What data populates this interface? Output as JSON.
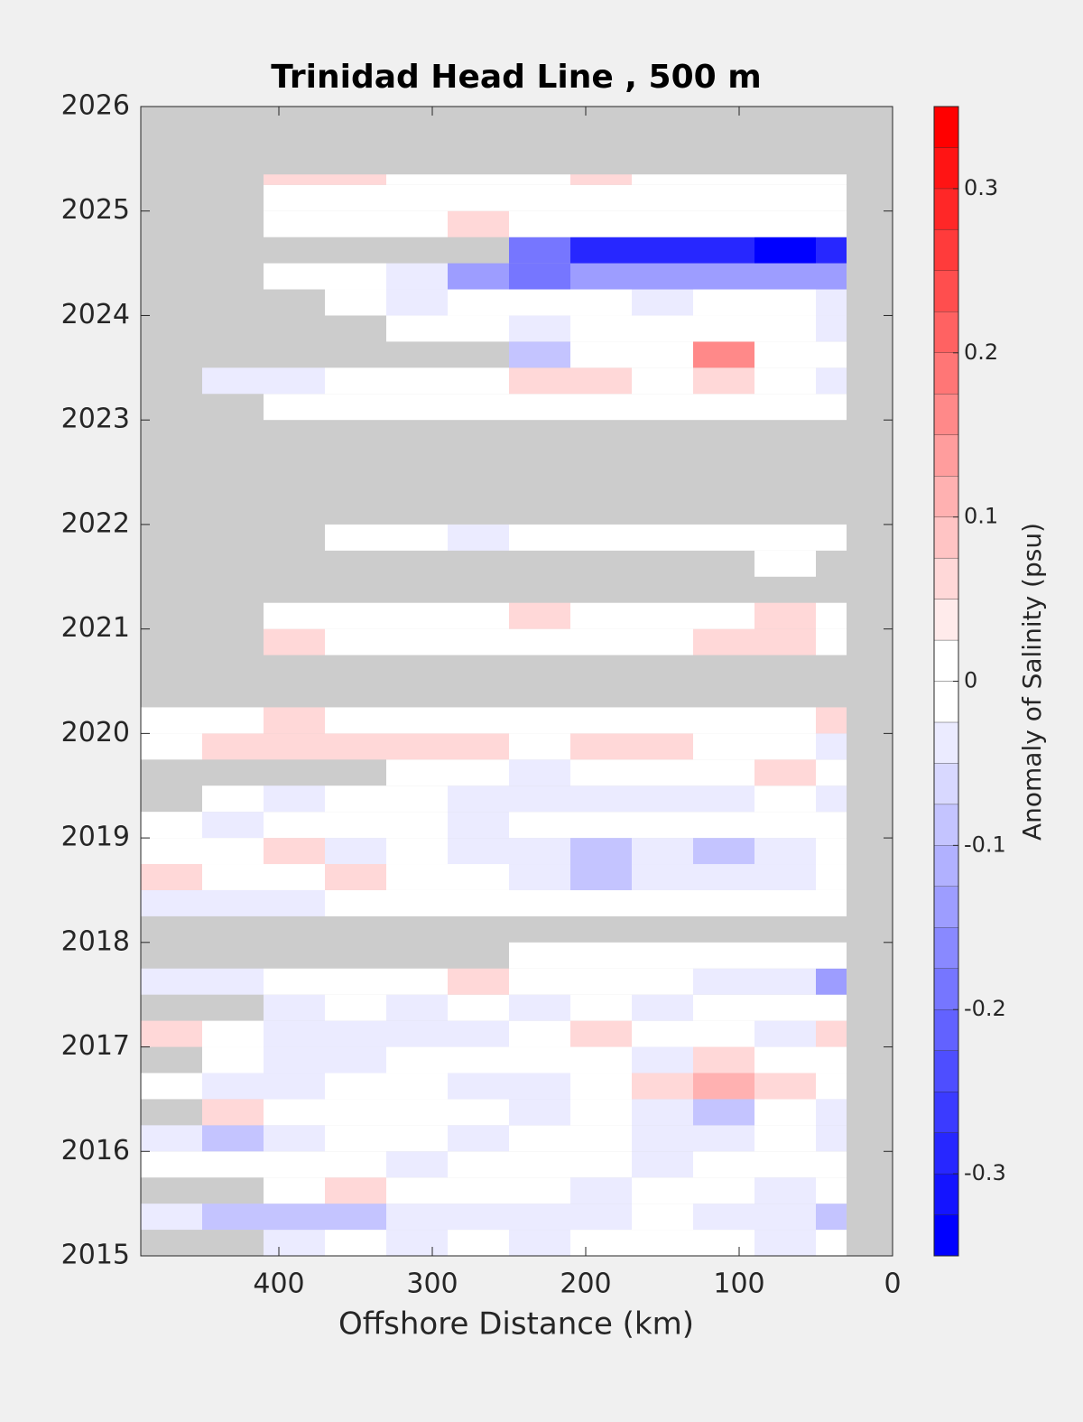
{
  "chart_data": {
    "type": "heatmap",
    "title": "Trinidad Head Line , 500 m",
    "xlabel": "Offshore Distance (km)",
    "colorbar_label": "Anomaly of Salinity (psu)",
    "xlim": [
      490,
      0
    ],
    "xticks": [
      400,
      300,
      200,
      100,
      0
    ],
    "ylim": [
      2015,
      2026
    ],
    "yticks": [
      2015,
      2016,
      2017,
      2018,
      2019,
      2020,
      2021,
      2022,
      2023,
      2024,
      2025,
      2026
    ],
    "clim": [
      -0.35,
      0.35
    ],
    "cticks": [
      0.3,
      0.2,
      0.1,
      0,
      -0.1,
      -0.2,
      -0.3
    ],
    "color_levels": 28,
    "cmap": [
      "#0000ff",
      "#ffffff",
      "#ff0000"
    ],
    "nan_color": "#cccccc",
    "x_edges": [
      490,
      450,
      410,
      370,
      330,
      290,
      250,
      210,
      170,
      130,
      90,
      50,
      30
    ],
    "y_edges": [
      2015,
      2015.25,
      2015.5,
      2015.75,
      2016,
      2016.25,
      2016.5,
      2016.75,
      2017,
      2017.25,
      2017.5,
      2017.75,
      2018,
      2018.25,
      2018.5,
      2018.75,
      2019,
      2019.25,
      2019.5,
      2019.75,
      2020,
      2020.25,
      2020.5,
      2020.75,
      2021,
      2021.25,
      2021.5,
      2021.75,
      2022,
      2022.25,
      2022.5,
      2022.75,
      2023,
      2023.25,
      2023.5,
      2023.75,
      2024,
      2024.25,
      2024.5,
      2024.75,
      2025,
      2025.25,
      2025.35
    ],
    "z": [
      [
        null,
        null,
        -0.05,
        0,
        -0.05,
        0,
        -0.05,
        0,
        0,
        0,
        -0.05,
        0
      ],
      [
        -0.05,
        -0.1,
        -0.1,
        -0.1,
        -0.05,
        -0.05,
        -0.05,
        -0.05,
        0,
        -0.05,
        -0.05,
        -0.1
      ],
      [
        null,
        null,
        0,
        0.05,
        0,
        0,
        0,
        -0.05,
        0,
        0,
        -0.05,
        0
      ],
      [
        0,
        0,
        0,
        0,
        -0.05,
        0,
        0,
        0,
        -0.05,
        0,
        0,
        0
      ],
      [
        -0.05,
        -0.1,
        -0.05,
        0,
        0,
        -0.05,
        0,
        0,
        -0.05,
        -0.05,
        0,
        -0.05
      ],
      [
        null,
        0.05,
        0,
        0,
        0,
        0,
        -0.05,
        0,
        -0.05,
        -0.1,
        0,
        -0.05
      ],
      [
        0,
        -0.05,
        -0.05,
        0,
        0,
        -0.05,
        -0.05,
        0,
        0.05,
        0.1,
        0.05,
        0
      ],
      [
        null,
        0,
        -0.05,
        -0.05,
        0,
        0,
        0,
        0,
        -0.05,
        0.05,
        0,
        0
      ],
      [
        0.05,
        0,
        -0.05,
        -0.05,
        -0.05,
        -0.05,
        0,
        0.05,
        0,
        0,
        -0.05,
        0.05
      ],
      [
        null,
        null,
        -0.05,
        0,
        -0.05,
        0,
        -0.05,
        0,
        -0.05,
        0,
        0,
        0
      ],
      [
        -0.05,
        -0.05,
        0,
        0,
        0,
        0.05,
        0,
        0,
        0,
        -0.05,
        -0.05,
        -0.15
      ],
      [
        null,
        null,
        null,
        null,
        null,
        null,
        0,
        0,
        0,
        0,
        0,
        0
      ],
      [
        null,
        null,
        null,
        null,
        null,
        null,
        null,
        null,
        null,
        null,
        null,
        null
      ],
      [
        -0.05,
        -0.05,
        -0.05,
        0,
        0,
        0,
        0,
        0,
        0,
        0,
        0,
        0
      ],
      [
        0.05,
        0,
        0,
        0.05,
        0,
        0,
        -0.05,
        -0.1,
        -0.05,
        -0.05,
        -0.05,
        0
      ],
      [
        0,
        0,
        0.05,
        -0.05,
        0,
        -0.05,
        -0.05,
        -0.1,
        -0.05,
        -0.1,
        -0.05,
        0
      ],
      [
        0,
        -0.05,
        0,
        0,
        0,
        -0.05,
        0,
        0,
        0,
        0,
        0,
        0
      ],
      [
        null,
        0,
        -0.05,
        0,
        0,
        -0.05,
        -0.05,
        -0.05,
        -0.05,
        -0.05,
        0,
        -0.05
      ],
      [
        null,
        null,
        null,
        null,
        0,
        0,
        -0.05,
        0,
        0,
        0,
        0.05,
        0
      ],
      [
        0,
        0.05,
        0.05,
        0.05,
        0.05,
        0.05,
        0,
        0.05,
        0.05,
        0,
        0,
        -0.05
      ],
      [
        0,
        0,
        0.05,
        0,
        0,
        0,
        0,
        0,
        0,
        0,
        0,
        0.05
      ],
      [
        null,
        null,
        null,
        null,
        null,
        null,
        null,
        null,
        null,
        null,
        null,
        null
      ],
      [
        null,
        null,
        null,
        null,
        null,
        null,
        null,
        null,
        null,
        null,
        null,
        null
      ],
      [
        null,
        null,
        0.05,
        0,
        0,
        0,
        0,
        0,
        0,
        0.05,
        0.05,
        0
      ],
      [
        null,
        null,
        0,
        0,
        0,
        0,
        0.05,
        0,
        0,
        0,
        0.05,
        0
      ],
      [
        null,
        null,
        null,
        null,
        null,
        null,
        null,
        null,
        null,
        null,
        null,
        null
      ],
      [
        null,
        null,
        null,
        null,
        null,
        null,
        null,
        null,
        null,
        null,
        0,
        null
      ],
      [
        null,
        null,
        null,
        0,
        0,
        -0.05,
        0,
        0,
        0,
        0,
        0,
        0
      ],
      [
        null,
        null,
        null,
        null,
        null,
        null,
        null,
        null,
        null,
        null,
        null,
        null
      ],
      [
        null,
        null,
        null,
        null,
        null,
        null,
        null,
        null,
        null,
        null,
        null,
        null
      ],
      [
        null,
        null,
        null,
        null,
        null,
        null,
        null,
        null,
        null,
        null,
        null,
        null
      ],
      [
        null,
        null,
        null,
        null,
        null,
        null,
        null,
        null,
        null,
        null,
        null,
        null
      ],
      [
        null,
        null,
        0,
        0,
        0,
        0,
        0,
        0,
        0,
        0,
        0,
        0
      ],
      [
        null,
        -0.05,
        -0.05,
        0,
        0,
        0,
        0.05,
        0.05,
        0,
        0.05,
        0,
        -0.05
      ],
      [
        null,
        null,
        null,
        null,
        null,
        null,
        -0.1,
        0,
        0,
        0.15,
        0,
        0
      ],
      [
        null,
        null,
        null,
        null,
        0,
        0,
        -0.05,
        0,
        0,
        0,
        0,
        -0.05
      ],
      [
        null,
        null,
        null,
        0,
        -0.05,
        0,
        0,
        0,
        -0.05,
        0,
        0,
        -0.05
      ],
      [
        null,
        null,
        0,
        0,
        -0.05,
        -0.15,
        -0.2,
        -0.15,
        -0.15,
        -0.15,
        -0.15,
        -0.15
      ],
      [
        null,
        null,
        null,
        null,
        null,
        null,
        -0.2,
        -0.3,
        -0.3,
        -0.3,
        -0.35,
        -0.3
      ],
      [
        null,
        null,
        0,
        0,
        0,
        0.05,
        0,
        0,
        0,
        0,
        0,
        0
      ],
      [
        null,
        null,
        0,
        0,
        0,
        0,
        0,
        0,
        0,
        0,
        0,
        0
      ],
      [
        null,
        null,
        0.05,
        0.05,
        0,
        0,
        0,
        0.05,
        0,
        0,
        0,
        0
      ]
    ]
  }
}
